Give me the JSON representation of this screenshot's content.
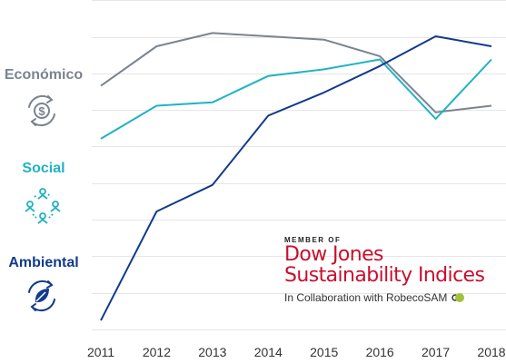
{
  "legend": {
    "economico": {
      "label": "Económico",
      "color": "#7a8491",
      "icon": "dollar-cycle-icon"
    },
    "social": {
      "label": "Social",
      "color": "#1fb3c4",
      "icon": "people-network-icon"
    },
    "ambiental": {
      "label": "Ambiental",
      "color": "#123a8c",
      "icon": "leaf-cycle-icon"
    }
  },
  "logo": {
    "member": "MEMBER OF",
    "line1": "Dow Jones",
    "line2": "Sustainability Indices",
    "collab": "In Collaboration with RobecoSAM",
    "color": "#c8102e"
  },
  "chart_data": {
    "type": "line",
    "x": [
      "2011",
      "2012",
      "2013",
      "2014",
      "2015",
      "2016",
      "2017",
      "2018"
    ],
    "grid": "horizontal",
    "series": [
      {
        "key": "economico",
        "color": "#7a8491",
        "values": [
          74,
          86,
          90,
          89,
          88,
          83,
          66,
          68
        ]
      },
      {
        "key": "social",
        "color": "#1fb3c4",
        "values": [
          58,
          68,
          69,
          77,
          79,
          82,
          64,
          82
        ]
      },
      {
        "key": "ambiental",
        "color": "#123a8c",
        "values": [
          3,
          36,
          44,
          65,
          72,
          80,
          89,
          86
        ]
      }
    ]
  }
}
